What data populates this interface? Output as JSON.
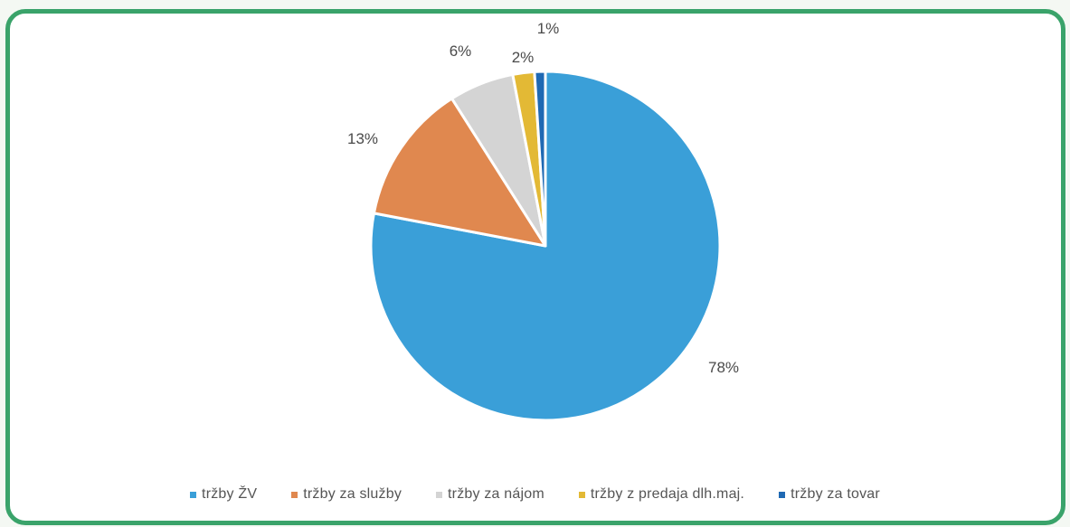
{
  "chart_data": {
    "type": "pie",
    "title": "",
    "categories": [
      "tržby ŽV",
      "tržby za služby",
      "tržby za nájom",
      "tržby z predaja dlh.maj.",
      "tržby za tovar"
    ],
    "values": [
      78,
      13,
      6,
      2,
      1
    ],
    "labels": [
      "78%",
      "13%",
      "6%",
      "2%",
      "1%"
    ],
    "colors": [
      "#3a9fd8",
      "#e0884f",
      "#d4d4d4",
      "#e3b935",
      "#1f69b3"
    ],
    "legend_position": "bottom",
    "frame_color": "#3aa36a"
  }
}
